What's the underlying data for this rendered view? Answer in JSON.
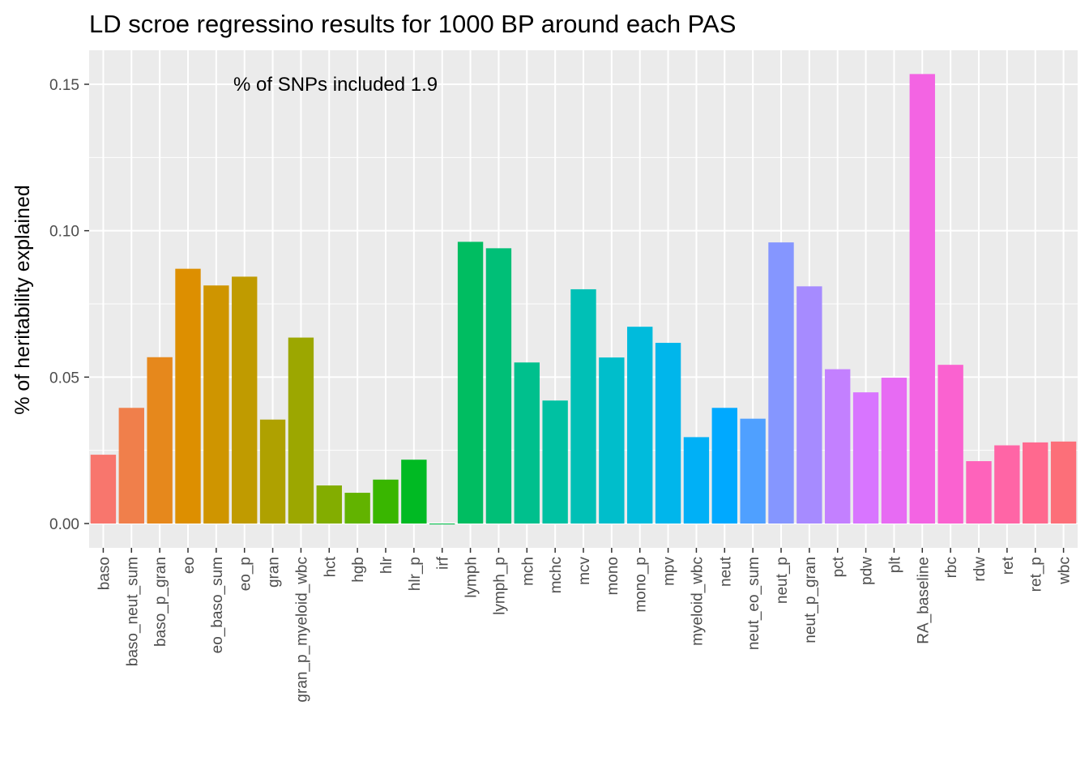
{
  "chart_data": {
    "type": "bar",
    "title": "LD scroe regressino results for 1000 BP around each PAS",
    "xlabel": "",
    "ylabel": "% of heritability explained",
    "annotation": "% of SNPs included 1.9",
    "ylim": [
      -0.0005,
      0.16
    ],
    "yticks": [
      "0.00",
      "0.05",
      "0.10",
      "0.15"
    ],
    "grid": true,
    "legend": "none",
    "categories": [
      "baso",
      "baso_neut_sum",
      "baso_p_gran",
      "eo",
      "eo_baso_sum",
      "eo_p",
      "gran",
      "gran_p_myeloid_wbc",
      "hct",
      "hgb",
      "hlr",
      "hlr_p",
      "irf",
      "lymph",
      "lymph_p",
      "mch",
      "mchc",
      "mcv",
      "mono",
      "mono_p",
      "mpv",
      "myeloid_wbc",
      "neut",
      "neut_eo_sum",
      "neut_p",
      "neut_p_gran",
      "pct",
      "pdw",
      "plt",
      "RA_baseline",
      "rbc",
      "rdw",
      "ret",
      "ret_p",
      "wbc"
    ],
    "values": [
      0.0235,
      0.0395,
      0.0568,
      0.087,
      0.0813,
      0.0843,
      0.0355,
      0.0635,
      0.013,
      0.0105,
      0.015,
      0.0218,
      -0.0003,
      0.0962,
      0.094,
      0.055,
      0.042,
      0.08,
      0.0567,
      0.0672,
      0.0617,
      0.0295,
      0.0395,
      0.0358,
      0.096,
      0.081,
      0.0527,
      0.0448,
      0.0498,
      0.1535,
      0.0542,
      0.0213,
      0.0267,
      0.0277,
      0.028
    ],
    "colors": [
      "#F8766D",
      "#F07F4B",
      "#E6881C",
      "#DD8F00",
      "#CF9500",
      "#C09B00",
      "#AFA100",
      "#9CA700",
      "#83AD00",
      "#62B300",
      "#39B600",
      "#00BA23",
      "#00BC48",
      "#00BD61",
      "#00BF77",
      "#00C08D",
      "#00C1A2",
      "#00C0B6",
      "#00BECB",
      "#00BBDC",
      "#00B6EB",
      "#00B0F6",
      "#00A9FF",
      "#4FA0FF",
      "#8596FF",
      "#A68BFF",
      "#C380FF",
      "#D875FF",
      "#E76BF3",
      "#F364E3",
      "#FA62D0",
      "#FE63BB",
      "#FF65A6",
      "#FF698F",
      "#FC6F79"
    ]
  }
}
